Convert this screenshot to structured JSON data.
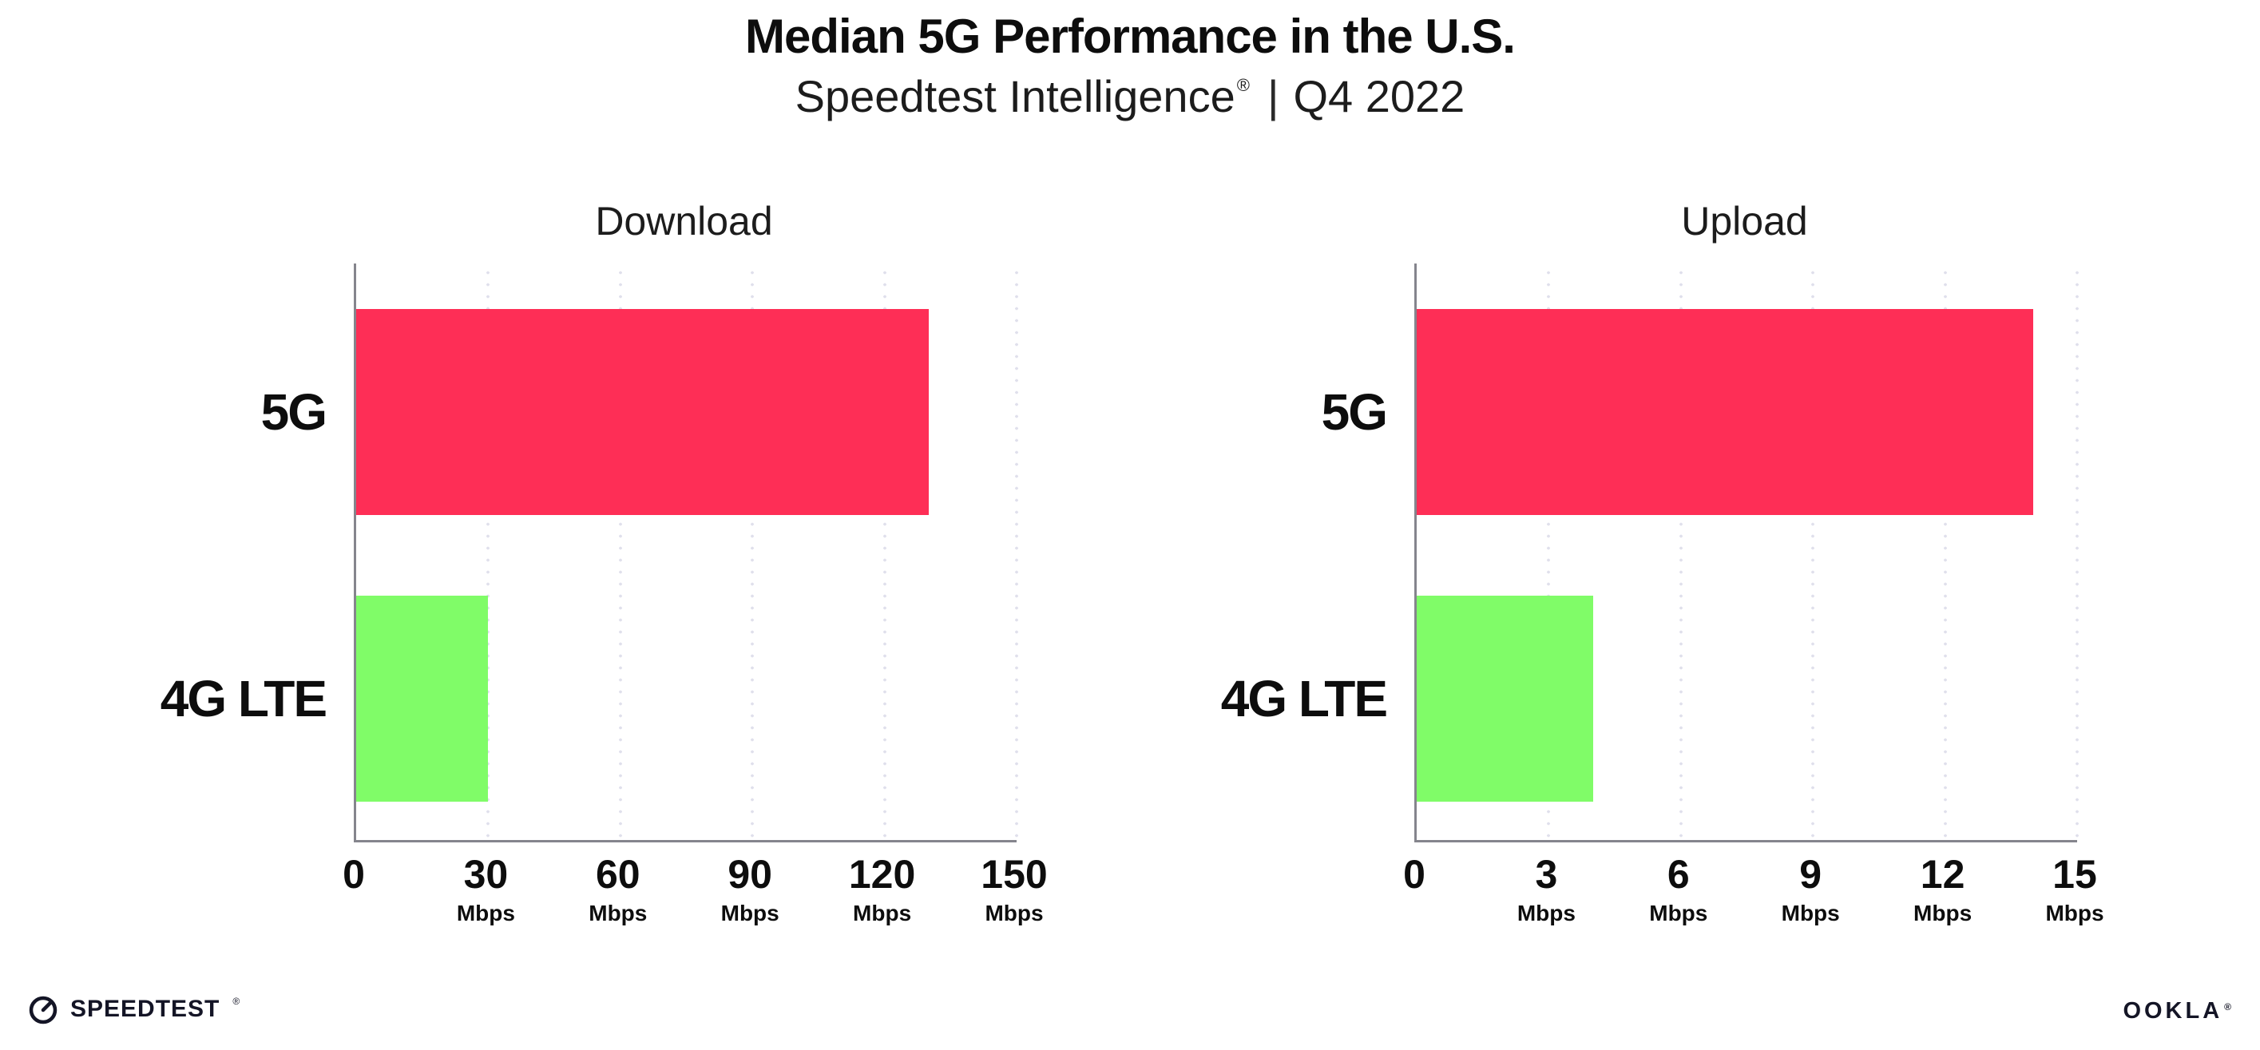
{
  "page": {
    "title": "Median 5G Performance in the U.S.",
    "subtitle_brand": "Speedtest Intelligence",
    "subtitle_reg": "®",
    "subtitle_sep": "|",
    "subtitle_period": "Q4 2022"
  },
  "colors": {
    "bar_5g": "#FE2E56",
    "bar_4g_lte": "#80FC68",
    "axis": "#85858D",
    "gridline": "#E0E0EC",
    "text": "#111111",
    "logo": "#141526"
  },
  "chart_data": [
    {
      "type": "bar",
      "orientation": "horizontal",
      "title": "Download",
      "categories": [
        "5G",
        "4G LTE"
      ],
      "values": [
        130,
        30
      ],
      "unit": "Mbps",
      "xlim": [
        0,
        150
      ],
      "xticks": [
        0,
        30,
        60,
        90,
        120,
        150
      ],
      "grid": "vertical-dotted",
      "legend": "none",
      "series_colors": [
        "#FE2E56",
        "#80FC68"
      ]
    },
    {
      "type": "bar",
      "orientation": "horizontal",
      "title": "Upload",
      "categories": [
        "5G",
        "4G LTE"
      ],
      "values": [
        14,
        4
      ],
      "unit": "Mbps",
      "xlim": [
        0,
        15
      ],
      "xticks": [
        0,
        3,
        6,
        9,
        12,
        15
      ],
      "grid": "vertical-dotted",
      "legend": "none",
      "series_colors": [
        "#FE2E56",
        "#80FC68"
      ]
    }
  ],
  "footer": {
    "speedtest_label": "SPEEDTEST",
    "speedtest_reg": "®",
    "ookla_label": "OOKLA",
    "ookla_reg": "®"
  }
}
